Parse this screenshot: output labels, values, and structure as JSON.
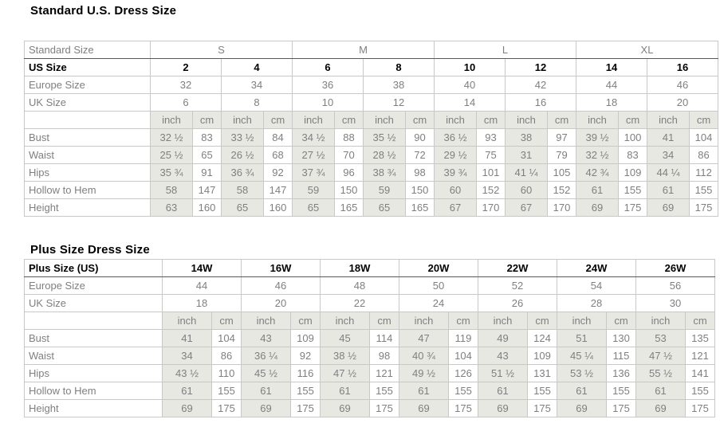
{
  "standard": {
    "title": "Standard U.S. Dress Size",
    "group_row": {
      "label": "Standard Size",
      "groups": [
        "S",
        "M",
        "L",
        "XL"
      ]
    },
    "header_rows": [
      {
        "label": "US Size",
        "bold": true,
        "values": [
          "2",
          "4",
          "6",
          "8",
          "10",
          "12",
          "14",
          "16"
        ]
      },
      {
        "label": "Europe Size",
        "bold": false,
        "values": [
          "32",
          "34",
          "36",
          "38",
          "40",
          "42",
          "44",
          "46"
        ]
      },
      {
        "label": "UK Size",
        "bold": false,
        "values": [
          "6",
          "8",
          "10",
          "12",
          "14",
          "16",
          "18",
          "20"
        ]
      }
    ],
    "units": {
      "inch": "inch",
      "cm": "cm"
    },
    "measure_rows": [
      {
        "label": "Bust",
        "inch": [
          "32 ½",
          "33 ½",
          "34 ½",
          "35 ½",
          "36 ½",
          "38",
          "39 ½",
          "41"
        ],
        "cm": [
          "83",
          "84",
          "88",
          "90",
          "93",
          "97",
          "100",
          "104"
        ]
      },
      {
        "label": "Waist",
        "inch": [
          "25 ½",
          "26 ½",
          "27 ½",
          "28 ½",
          "29 ½",
          "31",
          "32 ½",
          "34"
        ],
        "cm": [
          "65",
          "68",
          "70",
          "72",
          "75",
          "79",
          "83",
          "86"
        ]
      },
      {
        "label": "Hips",
        "inch": [
          "35 ¾",
          "36 ¾",
          "37 ¾",
          "38 ¾",
          "39 ¾",
          "41 ¼",
          "42 ¾",
          "44 ¼"
        ],
        "cm": [
          "91",
          "92",
          "96",
          "98",
          "101",
          "105",
          "109",
          "112"
        ]
      },
      {
        "label": "Hollow to Hem",
        "inch": [
          "58",
          "58",
          "59",
          "59",
          "60",
          "60",
          "61",
          "61"
        ],
        "cm": [
          "147",
          "147",
          "150",
          "150",
          "152",
          "152",
          "155",
          "155"
        ]
      },
      {
        "label": "Height",
        "inch": [
          "63",
          "65",
          "65",
          "65",
          "67",
          "67",
          "69",
          "69"
        ],
        "cm": [
          "160",
          "160",
          "165",
          "165",
          "170",
          "170",
          "175",
          "175"
        ]
      }
    ]
  },
  "plus": {
    "title": "Plus Size Dress Size",
    "header_rows": [
      {
        "label": "Plus Size (US)",
        "bold": true,
        "values": [
          "14W",
          "16W",
          "18W",
          "20W",
          "22W",
          "24W",
          "26W"
        ]
      },
      {
        "label": "Europe Size",
        "bold": false,
        "values": [
          "44",
          "46",
          "48",
          "50",
          "52",
          "54",
          "56"
        ]
      },
      {
        "label": "UK Size",
        "bold": false,
        "values": [
          "18",
          "20",
          "22",
          "24",
          "26",
          "28",
          "30"
        ]
      }
    ],
    "units": {
      "inch": "inch",
      "cm": "cm"
    },
    "measure_rows": [
      {
        "label": "Bust",
        "inch": [
          "41",
          "43",
          "45",
          "47",
          "49",
          "51",
          "53"
        ],
        "cm": [
          "104",
          "109",
          "114",
          "119",
          "124",
          "130",
          "135"
        ]
      },
      {
        "label": "Waist",
        "inch": [
          "34",
          "36 ¼",
          "38 ½",
          "40 ¾",
          "43",
          "45 ¼",
          "47 ½"
        ],
        "cm": [
          "86",
          "92",
          "98",
          "104",
          "109",
          "115",
          "121"
        ]
      },
      {
        "label": "Hips",
        "inch": [
          "43 ½",
          "45 ½",
          "47 ½",
          "49 ½",
          "51 ½",
          "53 ½",
          "55 ½"
        ],
        "cm": [
          "110",
          "116",
          "121",
          "126",
          "131",
          "136",
          "141"
        ]
      },
      {
        "label": "Hollow to Hem",
        "inch": [
          "61",
          "61",
          "61",
          "61",
          "61",
          "61",
          "61"
        ],
        "cm": [
          "155",
          "155",
          "155",
          "155",
          "155",
          "155",
          "155"
        ]
      },
      {
        "label": "Height",
        "inch": [
          "69",
          "69",
          "69",
          "69",
          "69",
          "69",
          "69"
        ],
        "cm": [
          "175",
          "175",
          "175",
          "175",
          "175",
          "175",
          "175"
        ]
      }
    ]
  },
  "colors": {
    "shaded_cell_bg": "#e8e8e2",
    "light_border": "#c8c8c8",
    "dark_border": "#595959",
    "gray_text": "#7f7f7f",
    "black_text": "#000000"
  }
}
